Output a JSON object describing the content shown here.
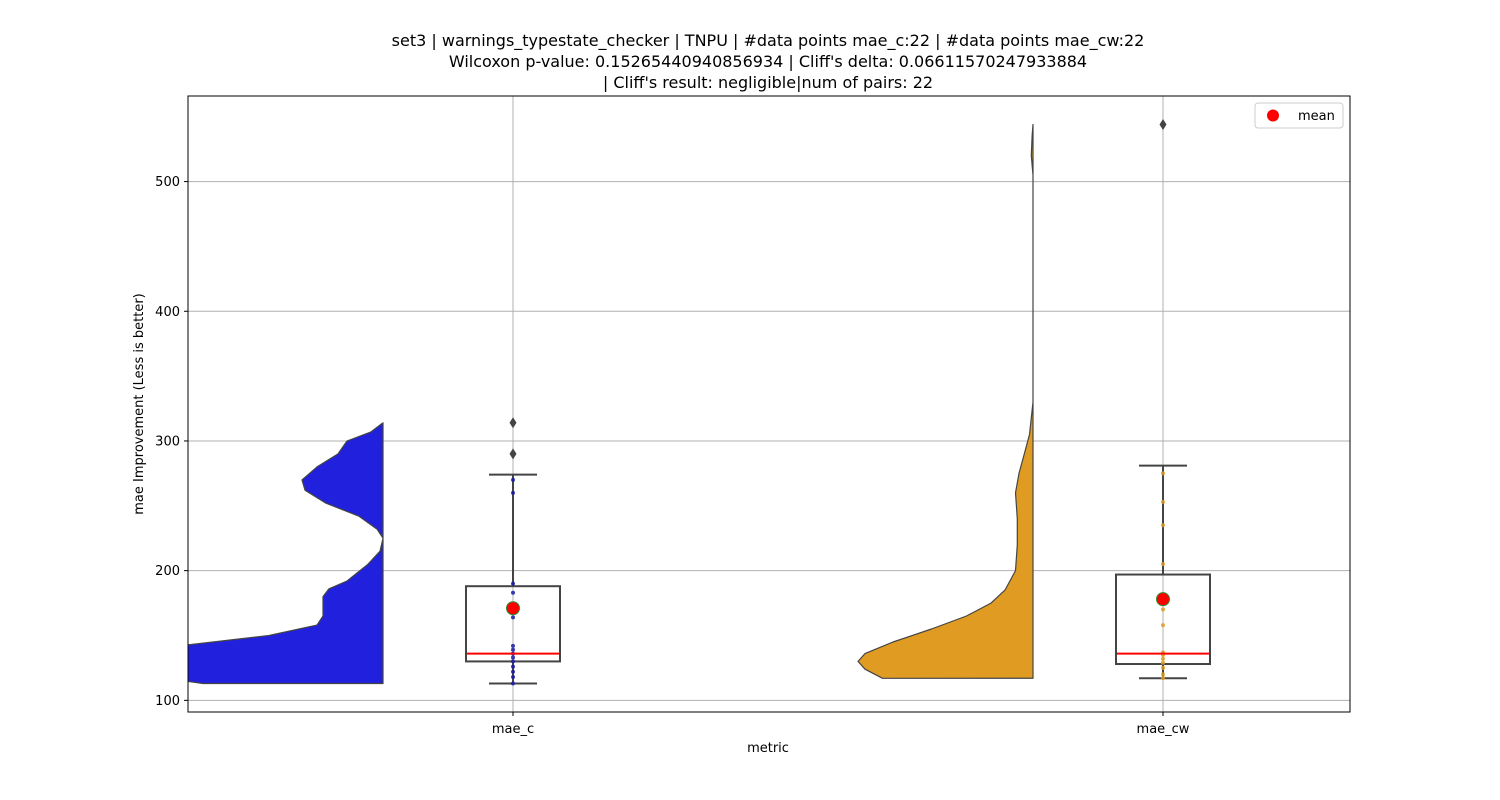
{
  "chart_data": {
    "type": "violin-box",
    "title_lines": [
      "set3 | warnings_typestate_checker | TNPU | #data points mae_c:22 | #data points mae_cw:22",
      "Wilcoxon p-value: 0.15265440940856934 | Cliff's delta: 0.06611570247933884",
      "| Cliff's result: negligible|num of pairs: 22"
    ],
    "xlabel": "metric",
    "ylabel": "mae Improvement (Less is better)",
    "ylim": [
      91,
      566
    ],
    "yticks": [
      100,
      200,
      300,
      400,
      500
    ],
    "grid": true,
    "legend": {
      "placement": "top-right",
      "label": "mean"
    },
    "categories": [
      "mae_c",
      "mae_cw"
    ],
    "groups": [
      {
        "name": "mae_c",
        "color": "#2121dd",
        "point_color": "#1a1aa6",
        "box": {
          "q1": 130,
          "median": 136,
          "q3": 188,
          "whisker_low": 113,
          "whisker_high": 274
        },
        "mean": 171,
        "outliers": [
          290,
          314
        ],
        "points": [
          113,
          118,
          122,
          126,
          130,
          133,
          136,
          139,
          142,
          164,
          183,
          190,
          260,
          270
        ],
        "violin_range": [
          113,
          314
        ],
        "violin_profile": [
          [
            113,
            0.6
          ],
          [
            120,
            0.82
          ],
          [
            125,
            0.92
          ],
          [
            130,
            1.0
          ],
          [
            136,
            0.9
          ],
          [
            142,
            0.68
          ],
          [
            150,
            0.38
          ],
          [
            158,
            0.22
          ],
          [
            165,
            0.2
          ],
          [
            172,
            0.2
          ],
          [
            180,
            0.2
          ],
          [
            186,
            0.18
          ],
          [
            192,
            0.12
          ],
          [
            205,
            0.05
          ],
          [
            215,
            0.01
          ],
          [
            225,
            0.0
          ],
          [
            232,
            0.02
          ],
          [
            242,
            0.08
          ],
          [
            252,
            0.19
          ],
          [
            262,
            0.26
          ],
          [
            270,
            0.27
          ],
          [
            280,
            0.22
          ],
          [
            290,
            0.15
          ],
          [
            300,
            0.12
          ],
          [
            307,
            0.04
          ],
          [
            314,
            0.0
          ]
        ]
      },
      {
        "name": "mae_cw",
        "color": "#e09c22",
        "point_color": "#e09c22",
        "box": {
          "q1": 128,
          "median": 136,
          "q3": 197,
          "whisker_low": 117,
          "whisker_high": 281
        },
        "mean": 178,
        "outliers": [
          544
        ],
        "points": [
          117,
          120,
          125,
          129,
          132,
          135,
          137,
          158,
          170,
          205,
          235,
          253,
          275
        ],
        "violin_range": [
          117,
          544
        ],
        "violin_profile": [
          [
            117,
            0.86
          ],
          [
            124,
            0.96
          ],
          [
            130,
            1.0
          ],
          [
            136,
            0.96
          ],
          [
            145,
            0.8
          ],
          [
            155,
            0.58
          ],
          [
            165,
            0.38
          ],
          [
            175,
            0.24
          ],
          [
            185,
            0.16
          ],
          [
            200,
            0.1
          ],
          [
            220,
            0.09
          ],
          [
            240,
            0.09
          ],
          [
            260,
            0.1
          ],
          [
            275,
            0.08
          ],
          [
            290,
            0.05
          ],
          [
            305,
            0.02
          ],
          [
            330,
            0.0
          ],
          [
            400,
            0.0
          ],
          [
            480,
            0.0
          ],
          [
            505,
            0.0
          ],
          [
            520,
            0.01
          ],
          [
            535,
            0.005
          ],
          [
            544,
            0.0
          ]
        ]
      }
    ]
  }
}
